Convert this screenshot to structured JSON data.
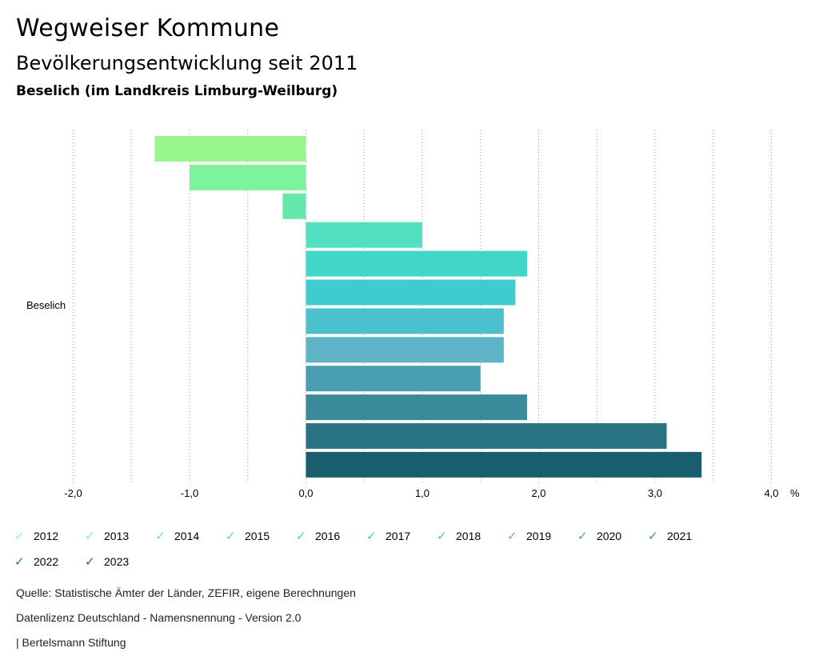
{
  "header": {
    "title": "Wegweiser Kommune",
    "subtitle": "Bevölkerungsentwicklung seit 2011",
    "region": "Beselich (im Landkreis Limburg-Weilburg)"
  },
  "chart_data": {
    "type": "bar",
    "orientation": "horizontal",
    "category": "Beselich",
    "xlim": [
      -2.0,
      4.0
    ],
    "xticks": [
      -2.0,
      -1.0,
      0.0,
      1.0,
      2.0,
      3.0,
      4.0
    ],
    "xtick_labels": [
      "-2,0",
      "-1,0",
      "0,0",
      "1,0",
      "2,0",
      "3,0",
      "4,0"
    ],
    "unit_label": "%",
    "grid": "vertical dotted",
    "series": [
      {
        "name": "2012",
        "value": -1.3,
        "color": "#98f88e"
      },
      {
        "name": "2013",
        "value": -1.0,
        "color": "#7ef29c"
      },
      {
        "name": "2014",
        "value": -0.2,
        "color": "#66e8a8"
      },
      {
        "name": "2015",
        "value": 1.0,
        "color": "#50e0bf"
      },
      {
        "name": "2016",
        "value": 1.9,
        "color": "#42d6c8"
      },
      {
        "name": "2017",
        "value": 1.8,
        "color": "#40ccce"
      },
      {
        "name": "2018",
        "value": 1.7,
        "color": "#4cc0cc"
      },
      {
        "name": "2019",
        "value": 1.7,
        "color": "#5eb4c6"
      },
      {
        "name": "2020",
        "value": 1.5,
        "color": "#4a9eb2"
      },
      {
        "name": "2021",
        "value": 1.9,
        "color": "#3a8a9c"
      },
      {
        "name": "2022",
        "value": 3.1,
        "color": "#297383"
      },
      {
        "name": "2023",
        "value": 3.4,
        "color": "#185e6e"
      }
    ]
  },
  "footer": {
    "source": "Quelle: Statistische Ämter der Länder, ZEFIR, eigene Berechnungen",
    "license": "Datenlizenz Deutschland - Namensnennung - Version 2.0",
    "publisher": "| Bertelsmann Stiftung"
  }
}
